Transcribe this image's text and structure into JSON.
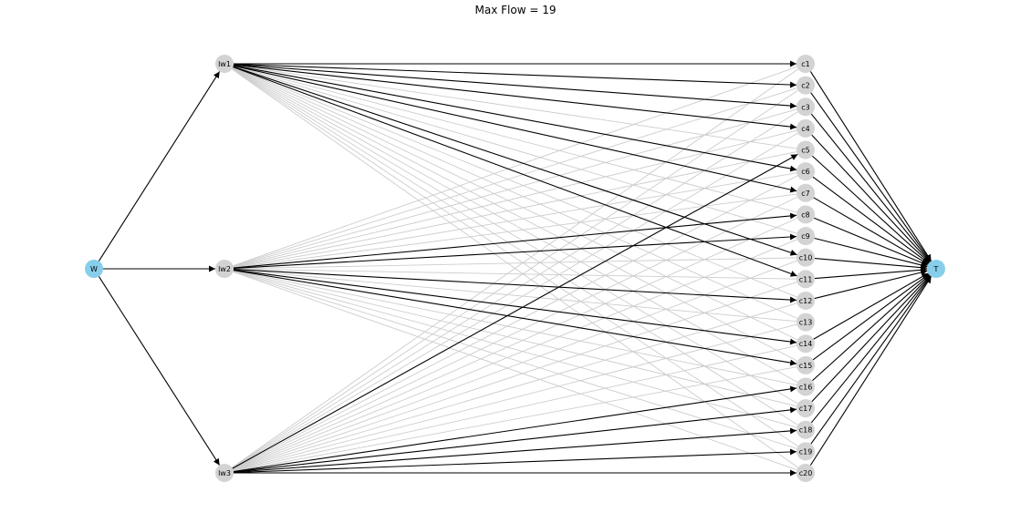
{
  "title": "Max Flow = 19",
  "colors": {
    "terminal_node": "#87ceeb",
    "inner_node": "#d3d3d3",
    "flow_edge": "#000000",
    "unused_edge": "#cccccc"
  },
  "nodes": {
    "source": "W",
    "sink": "T",
    "workers": [
      "lw1",
      "lw2",
      "lw3"
    ],
    "clients": [
      "c1",
      "c2",
      "c3",
      "c4",
      "c5",
      "c6",
      "c7",
      "c8",
      "c9",
      "c10",
      "c11",
      "c12",
      "c13",
      "c14",
      "c15",
      "c16",
      "c17",
      "c18",
      "c19",
      "c20"
    ]
  },
  "flow_edges": {
    "source_to_worker": [
      "lw1",
      "lw2",
      "lw3"
    ],
    "lw1": [
      "c1",
      "c2",
      "c3",
      "c4",
      "c6",
      "c7",
      "c10",
      "c11"
    ],
    "lw2": [
      "c8",
      "c9",
      "c12",
      "c14",
      "c15"
    ],
    "lw3": [
      "c5",
      "c16",
      "c17",
      "c18",
      "c19",
      "c20"
    ],
    "client_to_sink": [
      "c1",
      "c2",
      "c3",
      "c4",
      "c5",
      "c6",
      "c7",
      "c8",
      "c9",
      "c10",
      "c11",
      "c12",
      "c14",
      "c15",
      "c16",
      "c17",
      "c18",
      "c19",
      "c20"
    ]
  }
}
